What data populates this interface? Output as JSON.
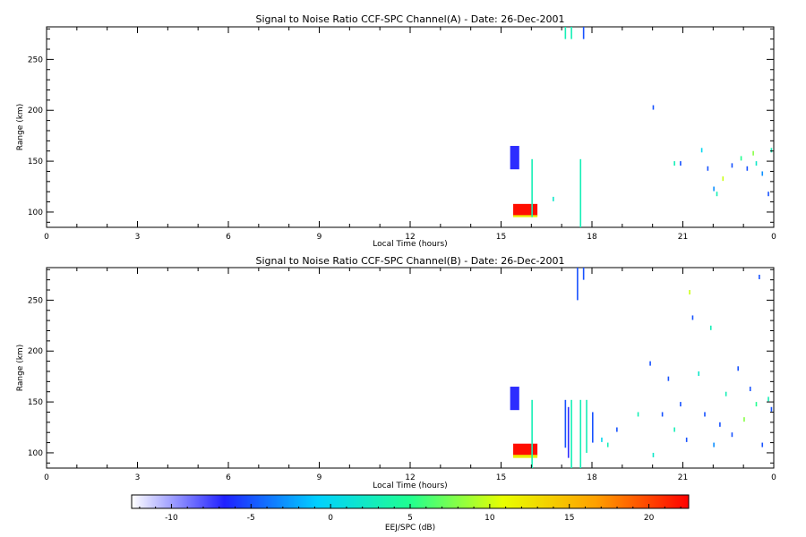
{
  "chart_data": [
    {
      "type": "heatmap",
      "title": "Signal to Noise Ratio CCF-SPC Channel(A) - Date: 26-Dec-2001",
      "xlabel": "Local Time (hours)",
      "ylabel": "Range (km)",
      "xlim": [
        0,
        24
      ],
      "ylim": [
        85,
        282
      ],
      "xticks": [
        "0",
        "3",
        "6",
        "9",
        "12",
        "15",
        "18",
        "21",
        "0"
      ],
      "yticks": [
        100,
        150,
        200,
        250
      ],
      "blocks": [
        {
          "x": [
            15.4,
            16.2
          ],
          "y": [
            96,
            108
          ],
          "value": 22
        },
        {
          "x": [
            15.4,
            16.2
          ],
          "y": [
            95,
            97
          ],
          "value": 12
        },
        {
          "x": [
            15.3,
            15.6
          ],
          "y": [
            142,
            165
          ],
          "value": -7
        }
      ],
      "vlines": [
        {
          "x": 16.0,
          "y": [
            95,
            152
          ],
          "value": 3
        },
        {
          "x": 17.1,
          "y": [
            270,
            282
          ],
          "value": 3
        },
        {
          "x": 17.3,
          "y": [
            270,
            282
          ],
          "value": 3
        },
        {
          "x": 17.6,
          "y": [
            85,
            152
          ],
          "value": 3
        },
        {
          "x": 17.7,
          "y": [
            270,
            282
          ],
          "value": -5
        }
      ],
      "points": [
        {
          "x": 16.7,
          "y": 115,
          "value": 2
        },
        {
          "x": 20.0,
          "y": 205,
          "value": -5
        },
        {
          "x": 20.7,
          "y": 150,
          "value": 3
        },
        {
          "x": 20.9,
          "y": 150,
          "value": -5
        },
        {
          "x": 21.6,
          "y": 163,
          "value": 0
        },
        {
          "x": 21.8,
          "y": 145,
          "value": -5
        },
        {
          "x": 22.0,
          "y": 125,
          "value": -3
        },
        {
          "x": 22.1,
          "y": 120,
          "value": 3
        },
        {
          "x": 22.3,
          "y": 135,
          "value": 10
        },
        {
          "x": 22.6,
          "y": 148,
          "value": -5
        },
        {
          "x": 22.9,
          "y": 155,
          "value": 5
        },
        {
          "x": 23.1,
          "y": 145,
          "value": -5
        },
        {
          "x": 23.3,
          "y": 160,
          "value": 8
        },
        {
          "x": 23.4,
          "y": 150,
          "value": 2
        },
        {
          "x": 23.6,
          "y": 140,
          "value": -3
        },
        {
          "x": 23.8,
          "y": 120,
          "value": -5
        },
        {
          "x": 23.9,
          "y": 163,
          "value": 3
        }
      ]
    },
    {
      "type": "heatmap",
      "title": "Signal to Noise Ratio CCF-SPC Channel(B) - Date: 26-Dec-2001",
      "xlabel": "Local Time (hours)",
      "ylabel": "Range (km)",
      "xlim": [
        0,
        24
      ],
      "ylim": [
        85,
        282
      ],
      "xticks": [
        "0",
        "3",
        "6",
        "9",
        "12",
        "15",
        "18",
        "21",
        "0"
      ],
      "yticks": [
        100,
        150,
        200,
        250
      ],
      "blocks": [
        {
          "x": [
            15.4,
            16.2
          ],
          "y": [
            97,
            109
          ],
          "value": 22
        },
        {
          "x": [
            15.4,
            16.2
          ],
          "y": [
            95,
            98
          ],
          "value": 12
        },
        {
          "x": [
            15.3,
            15.6
          ],
          "y": [
            142,
            165
          ],
          "value": -7
        }
      ],
      "vlines": [
        {
          "x": 16.0,
          "y": [
            85,
            152
          ],
          "value": 3
        },
        {
          "x": 17.1,
          "y": [
            105,
            152
          ],
          "value": -5
        },
        {
          "x": 17.2,
          "y": [
            95,
            145
          ],
          "value": -7
        },
        {
          "x": 17.3,
          "y": [
            85,
            152
          ],
          "value": 3
        },
        {
          "x": 17.5,
          "y": [
            250,
            282
          ],
          "value": -5
        },
        {
          "x": 17.6,
          "y": [
            85,
            152
          ],
          "value": 3
        },
        {
          "x": 17.7,
          "y": [
            270,
            282
          ],
          "value": -5
        },
        {
          "x": 17.8,
          "y": [
            100,
            152
          ],
          "value": 3
        },
        {
          "x": 18.0,
          "y": [
            110,
            140
          ],
          "value": -5
        }
      ],
      "points": [
        {
          "x": 18.3,
          "y": 115,
          "value": 0
        },
        {
          "x": 18.5,
          "y": 110,
          "value": 3
        },
        {
          "x": 18.8,
          "y": 125,
          "value": -5
        },
        {
          "x": 19.5,
          "y": 140,
          "value": 3
        },
        {
          "x": 19.9,
          "y": 190,
          "value": -5
        },
        {
          "x": 20.0,
          "y": 100,
          "value": 2
        },
        {
          "x": 20.3,
          "y": 140,
          "value": -5
        },
        {
          "x": 20.5,
          "y": 175,
          "value": -5
        },
        {
          "x": 20.7,
          "y": 125,
          "value": 3
        },
        {
          "x": 20.9,
          "y": 150,
          "value": -5
        },
        {
          "x": 21.1,
          "y": 115,
          "value": -5
        },
        {
          "x": 21.2,
          "y": 260,
          "value": 10
        },
        {
          "x": 21.3,
          "y": 235,
          "value": -5
        },
        {
          "x": 21.5,
          "y": 180,
          "value": 2
        },
        {
          "x": 21.7,
          "y": 140,
          "value": -5
        },
        {
          "x": 21.9,
          "y": 225,
          "value": 3
        },
        {
          "x": 22.0,
          "y": 110,
          "value": -3
        },
        {
          "x": 22.2,
          "y": 130,
          "value": -5
        },
        {
          "x": 22.4,
          "y": 160,
          "value": 3
        },
        {
          "x": 22.6,
          "y": 120,
          "value": -5
        },
        {
          "x": 22.8,
          "y": 185,
          "value": -5
        },
        {
          "x": 23.0,
          "y": 135,
          "value": 8
        },
        {
          "x": 23.2,
          "y": 165,
          "value": -5
        },
        {
          "x": 23.4,
          "y": 150,
          "value": 5
        },
        {
          "x": 23.5,
          "y": 275,
          "value": -5
        },
        {
          "x": 23.6,
          "y": 110,
          "value": -5
        },
        {
          "x": 23.8,
          "y": 155,
          "value": 3
        },
        {
          "x": 23.9,
          "y": 145,
          "value": -5
        }
      ]
    }
  ],
  "colorbar": {
    "label": "EEJ/SPC (dB)",
    "range": [
      -12.5,
      22.5
    ],
    "ticks": [
      -10,
      -5,
      0,
      5,
      10,
      15,
      20
    ],
    "colors": [
      "#ffffff",
      "#2020ff",
      "#00d0ff",
      "#20ff90",
      "#e8ff00",
      "#ffa000",
      "#ff0000"
    ]
  }
}
